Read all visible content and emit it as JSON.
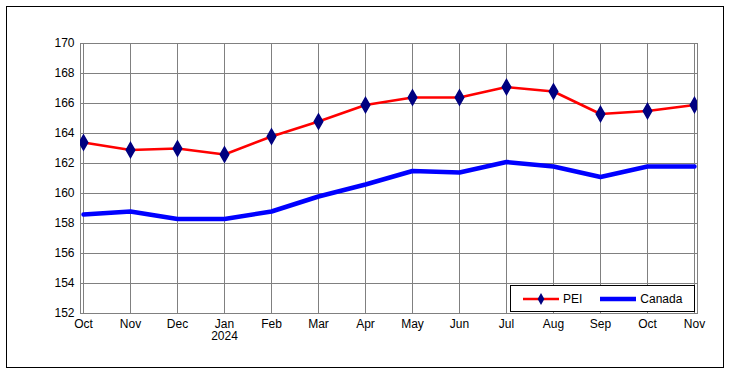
{
  "chart_data": {
    "type": "line",
    "categories": [
      "Oct",
      "Nov",
      "Dec",
      "Jan\n2024",
      "Feb",
      "Mar",
      "Apr",
      "May",
      "Jun",
      "Jul",
      "Aug",
      "Sep",
      "Oct",
      "Nov"
    ],
    "series": [
      {
        "name": "PEI",
        "color": "#ff0000",
        "marker": "diamond",
        "values": [
          163.4,
          162.9,
          163.0,
          162.6,
          163.8,
          164.8,
          165.9,
          166.4,
          166.4,
          167.1,
          166.8,
          165.3,
          165.5,
          165.9
        ]
      },
      {
        "name": "Canada",
        "color": "#0000ff",
        "values": [
          158.6,
          158.8,
          158.3,
          158.3,
          158.8,
          159.8,
          160.6,
          161.5,
          161.4,
          162.1,
          161.8,
          161.1,
          161.8,
          161.8
        ]
      }
    ],
    "ylim": [
      152,
      170
    ],
    "yticks": [
      152,
      154,
      156,
      158,
      160,
      162,
      164,
      166,
      168,
      170
    ],
    "grid": true,
    "legend": "lower right"
  }
}
